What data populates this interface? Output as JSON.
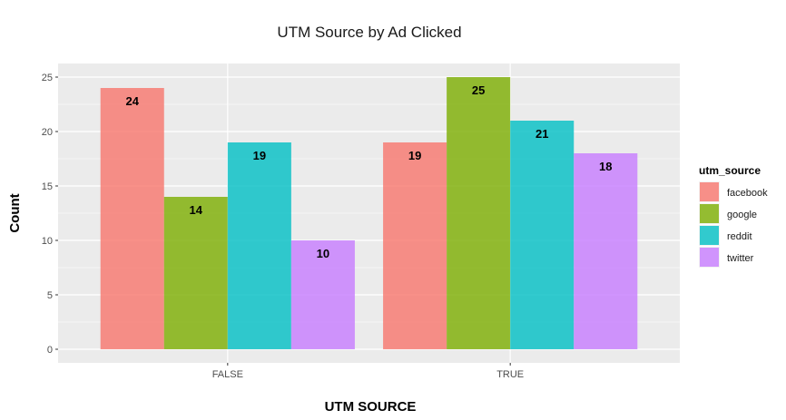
{
  "chart_data": {
    "type": "bar",
    "title": "UTM Source by Ad Clicked",
    "xlabel": "UTM SOURCE",
    "ylabel": "Count",
    "categories": [
      "FALSE",
      "TRUE"
    ],
    "series": [
      {
        "name": "facebook",
        "values": [
          24,
          19
        ],
        "color": "#F8766D"
      },
      {
        "name": "google",
        "values": [
          14,
          25
        ],
        "color": "#7CAE00"
      },
      {
        "name": "reddit",
        "values": [
          19,
          21
        ],
        "color": "#00BFC4"
      },
      {
        "name": "twitter",
        "values": [
          10,
          18
        ],
        "color": "#C77CFF"
      }
    ],
    "yticks": [
      0,
      5,
      10,
      15,
      20,
      25
    ],
    "ylim": [
      -1.25,
      26.25
    ],
    "legend_title": "utm_source",
    "legend_position": "right",
    "grid": true,
    "panel_background": "#EBEBEB",
    "bar_opacity": 0.8
  }
}
